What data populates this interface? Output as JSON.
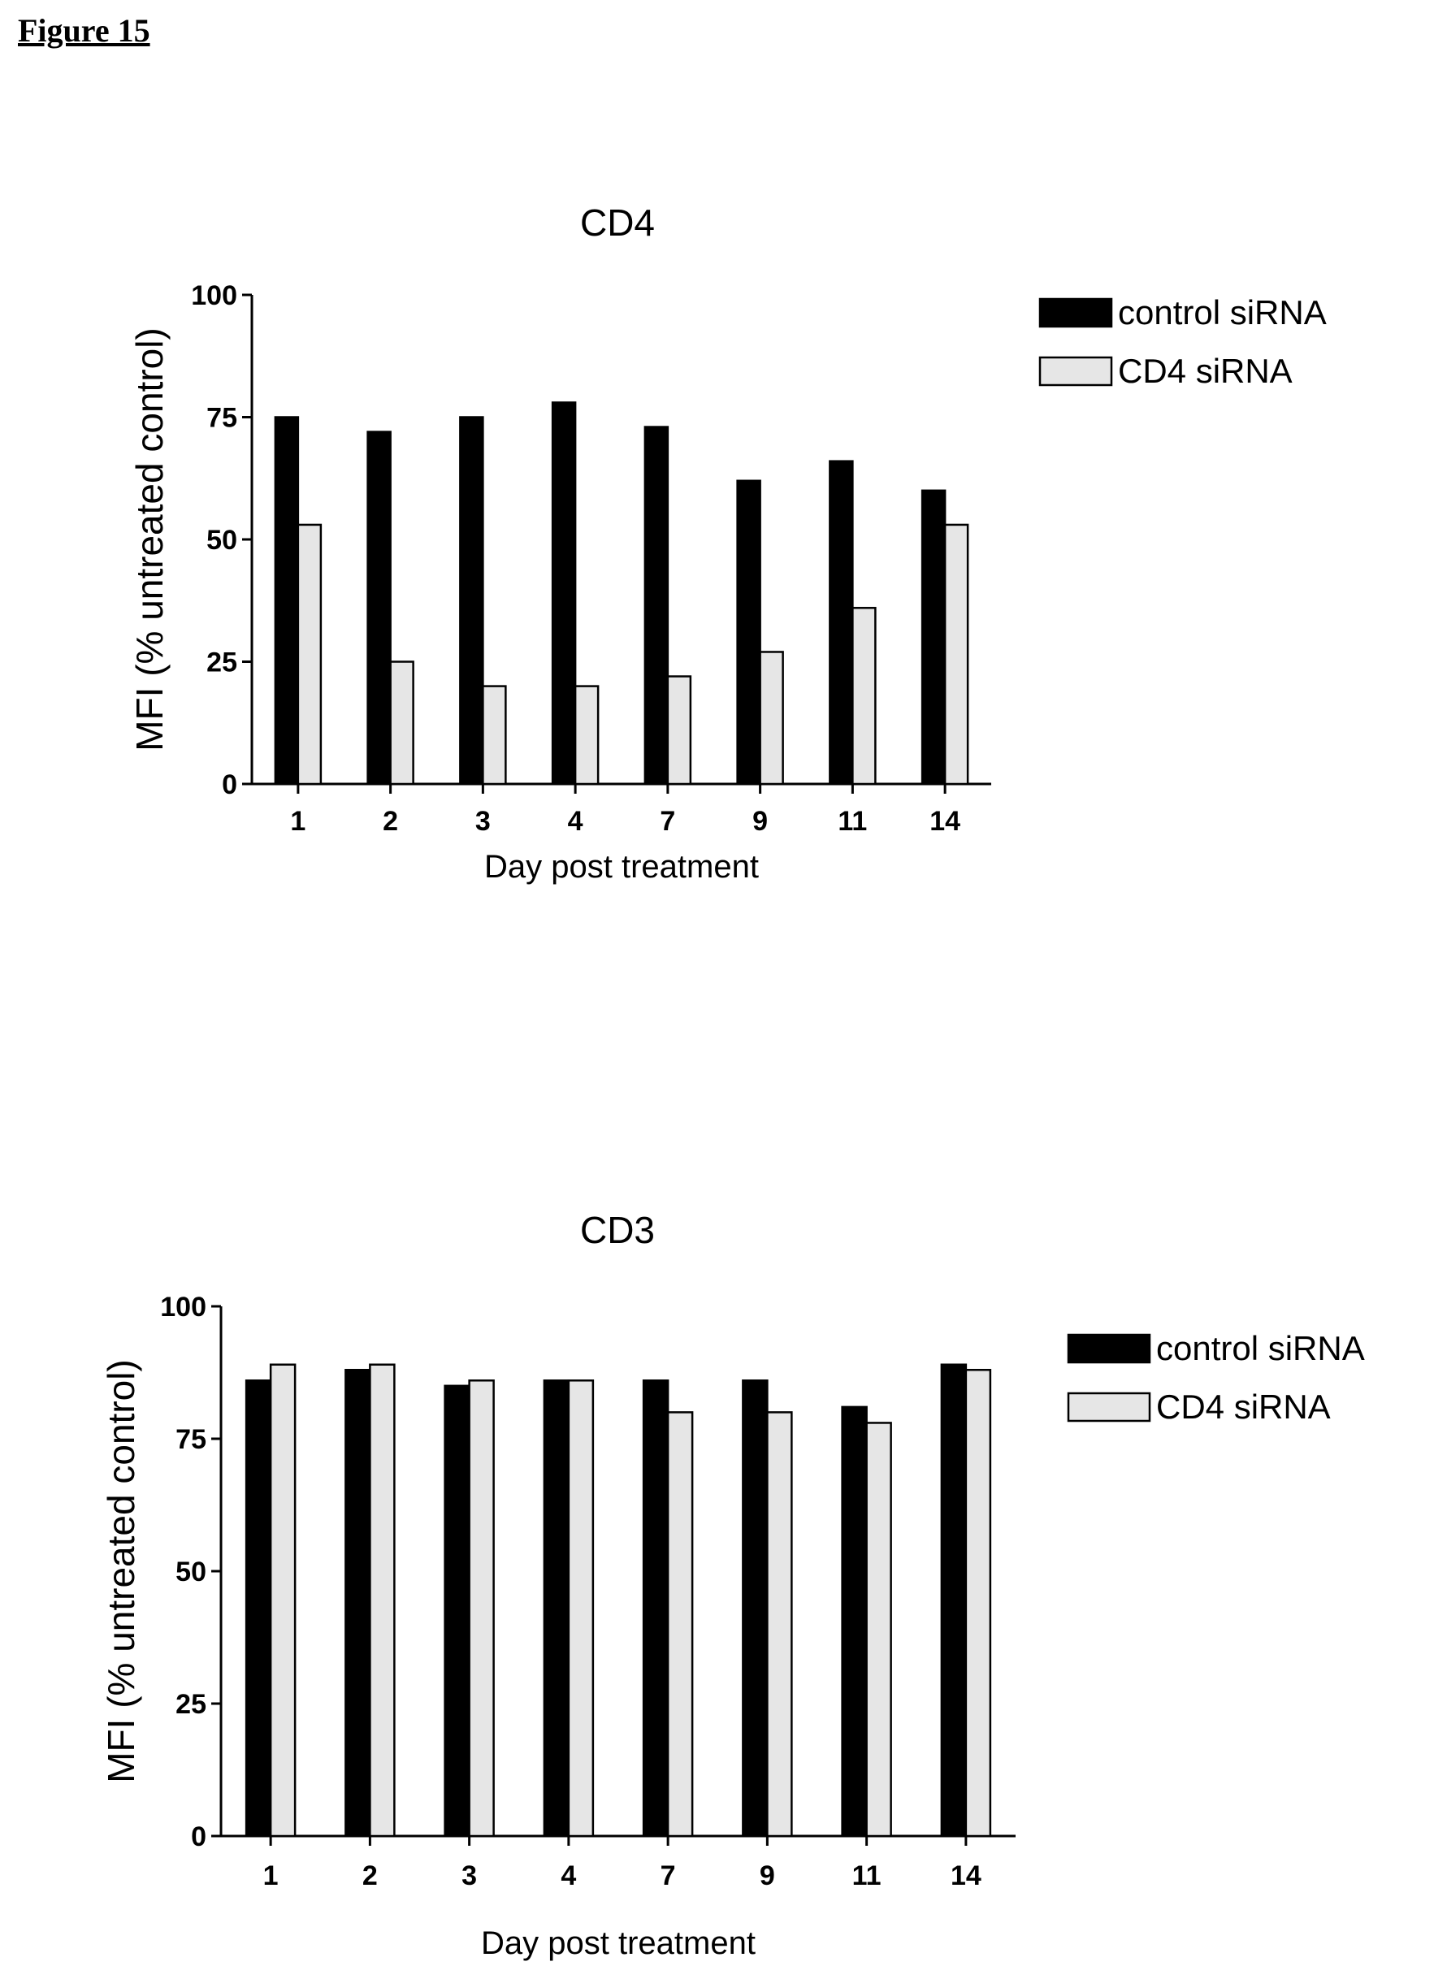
{
  "figure_label": "Figure 15",
  "chart_data": [
    {
      "type": "bar",
      "title": "CD4",
      "xlabel": "Day post treatment",
      "ylabel": "MFI (% untreated control)",
      "categories": [
        "1",
        "2",
        "3",
        "4",
        "7",
        "9",
        "11",
        "14"
      ],
      "ylim": [
        0,
        100
      ],
      "yticks": [
        "0",
        "25",
        "50",
        "75",
        "100"
      ],
      "grid": false,
      "legend_position": "top-right",
      "series": [
        {
          "name": "control siRNA",
          "color": "#000000",
          "values": [
            75,
            72,
            75,
            78,
            73,
            62,
            66,
            60
          ]
        },
        {
          "name": "CD4 siRNA",
          "color": "#e6e6e6",
          "values": [
            53,
            25,
            20,
            20,
            22,
            27,
            36,
            53
          ]
        }
      ]
    },
    {
      "type": "bar",
      "title": "CD3",
      "xlabel": "Day post treatment",
      "ylabel": "MFI (% untreated control)",
      "categories": [
        "1",
        "2",
        "3",
        "4",
        "7",
        "9",
        "11",
        "14"
      ],
      "ylim": [
        0,
        100
      ],
      "yticks": [
        "0",
        "25",
        "50",
        "75",
        "100"
      ],
      "grid": false,
      "legend_position": "top-right",
      "series": [
        {
          "name": "control siRNA",
          "color": "#000000",
          "values": [
            86,
            88,
            85,
            86,
            86,
            86,
            81,
            89
          ]
        },
        {
          "name": "CD4 siRNA",
          "color": "#e6e6e6",
          "values": [
            89,
            89,
            86,
            86,
            80,
            80,
            78,
            88
          ]
        }
      ]
    }
  ]
}
